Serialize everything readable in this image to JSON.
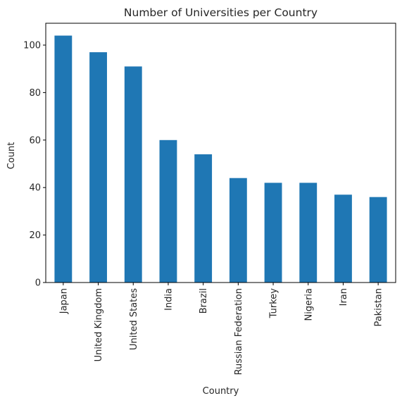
{
  "chart_data": {
    "type": "bar",
    "title": "Number of Universities per Country",
    "xlabel": "Country",
    "ylabel": "Count",
    "categories": [
      "Japan",
      "United Kingdom",
      "United States",
      "India",
      "Brazil",
      "Russian Federation",
      "Turkey",
      "Nigeria",
      "Iran",
      "Pakistan"
    ],
    "values": [
      104,
      97,
      91,
      60,
      54,
      44,
      42,
      42,
      37,
      36
    ],
    "ylim": [
      0,
      109.2
    ],
    "yticks": [
      0,
      20,
      40,
      60,
      80,
      100
    ],
    "bar_color": "#1f77b4",
    "grid": false,
    "legend": "none"
  }
}
